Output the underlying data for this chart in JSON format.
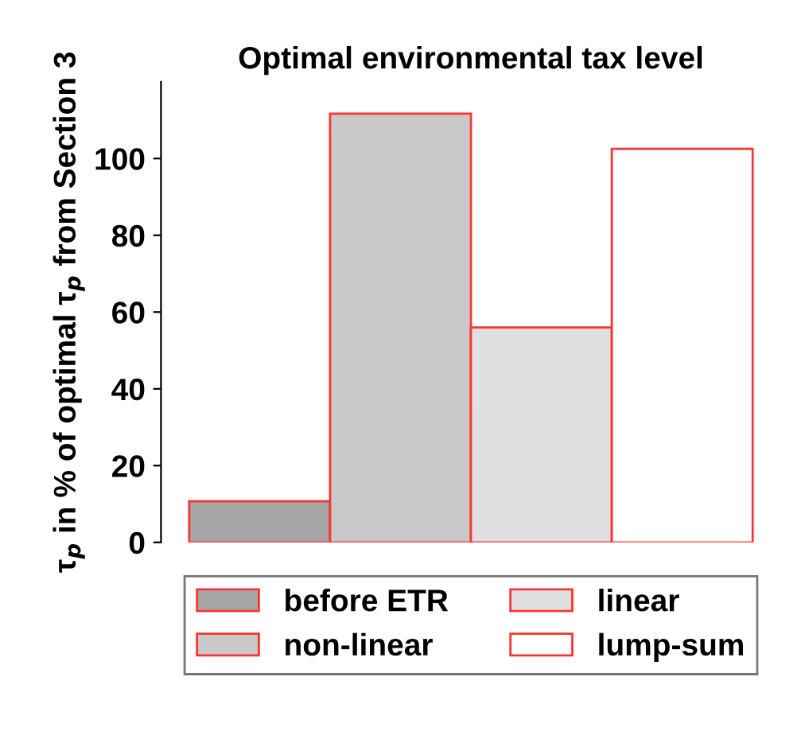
{
  "chart_data": {
    "type": "bar",
    "title": "Optimal environmental tax level",
    "ylabel": "τ$_{p}$ in % of optimal τ$_{p}$ from Section 3",
    "categories": [
      null
    ],
    "series": [
      {
        "name": "before ETR",
        "color": "#a6a6a6",
        "values": [
          10.7
        ]
      },
      {
        "name": "non-linear",
        "color": "#c8c8c8",
        "values": [
          111.7
        ]
      },
      {
        "name": "linear",
        "color": "#e0e0e0",
        "values": [
          56
        ]
      },
      {
        "name": "lump-sum",
        "color": "#ffffff",
        "values": [
          102.5
        ]
      }
    ],
    "ylim": [
      0,
      120
    ],
    "yticks": [
      0,
      20,
      40,
      60,
      80,
      100
    ],
    "grid": false,
    "legend": "bottom"
  }
}
